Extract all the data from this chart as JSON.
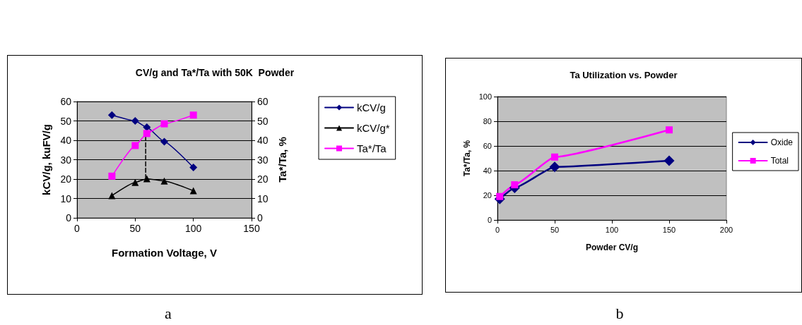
{
  "chart_data": [
    {
      "type": "line",
      "title": "CV/g and Ta*/Ta with 50K  Powder",
      "xlabel": "Formation Voltage, V",
      "ylabel": "kCV/g, kuFV/g",
      "y2label": "Ta*/Ta, %",
      "x": [
        30,
        50,
        60,
        75,
        100
      ],
      "series": [
        {
          "name": "kCV/g",
          "color": "#000080",
          "marker": "diamond",
          "values": [
            53,
            50,
            46.7,
            39.3,
            26
          ]
        },
        {
          "name": "kCV/g*",
          "color": "#000000",
          "marker": "triangle",
          "values": [
            11.5,
            18.3,
            20.2,
            19,
            14
          ]
        },
        {
          "name": "Ta*/Ta",
          "color": "#ff00ff",
          "marker": "square",
          "axis": "y2",
          "values": [
            21.5,
            37.3,
            43.5,
            48.5,
            53
          ]
        },
        {
          "type": "line",
          "color": "#000000",
          "marker": "none",
          "line_style": "dashed",
          "x": [
            59,
            59
          ],
          "values": [
            20.2,
            43.5
          ]
        }
      ],
      "xlim": [
        0,
        150
      ],
      "xticks": [
        0,
        50,
        100,
        150
      ],
      "ylim": [
        0,
        60
      ],
      "yticks": [
        0,
        10,
        20,
        30,
        40,
        50,
        60
      ],
      "y2lim": [
        0,
        60
      ],
      "y2ticks": [
        0,
        10,
        20,
        30,
        40,
        50,
        60
      ],
      "grid": "y",
      "legend": "right",
      "annotations": [
        "a"
      ]
    },
    {
      "type": "line",
      "title": "Ta Utilization vs. Powder",
      "xlabel": "Powder CV/g",
      "ylabel": "Ta*/Ta, %",
      "x": [
        2,
        15,
        50,
        150
      ],
      "series": [
        {
          "name": "Oxide",
          "color": "#000080",
          "marker": "diamond",
          "values": [
            17,
            26,
            43,
            48
          ]
        },
        {
          "name": "Total",
          "color": "#ff00ff",
          "marker": "square",
          "values": [
            19,
            28.5,
            51,
            73
          ]
        }
      ],
      "xlim": [
        0,
        200
      ],
      "xticks": [
        0,
        50,
        100,
        150,
        200
      ],
      "ylim": [
        0,
        100
      ],
      "yticks": [
        0,
        20,
        40,
        60,
        80,
        100
      ],
      "grid": "y",
      "legend": "right",
      "annotations": [
        "b"
      ]
    }
  ]
}
